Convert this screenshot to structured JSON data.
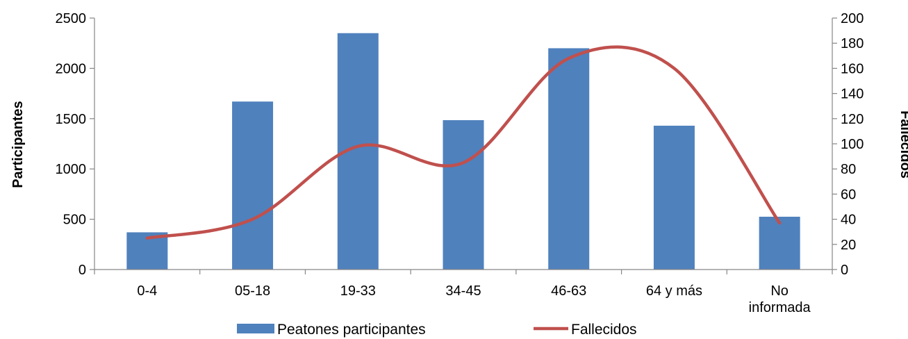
{
  "chart_data": {
    "type": "bar",
    "categories": [
      "0-4",
      "05-18",
      "19-33",
      "34-45",
      "46-63",
      "64 y más",
      "No informada"
    ],
    "category_lines": [
      [
        "0-4"
      ],
      [
        "05-18"
      ],
      [
        "19-33"
      ],
      [
        "34-45"
      ],
      [
        "46-63"
      ],
      [
        "64 y más"
      ],
      [
        "No",
        "informada"
      ]
    ],
    "series": [
      {
        "name": "Peatones participantes",
        "type": "bar",
        "axis": "left",
        "color": "#4F81BD",
        "values": [
          370,
          1670,
          2350,
          1485,
          2200,
          1430,
          525
        ]
      },
      {
        "name": "Fallecidos",
        "type": "line",
        "axis": "right",
        "color": "#C0504D",
        "smooth": true,
        "values": [
          25,
          40,
          98,
          85,
          168,
          160,
          37
        ]
      }
    ],
    "ylabel": "Participantes",
    "y2label": "Fallecidos",
    "ylim": [
      0,
      2500
    ],
    "y2lim": [
      0,
      200
    ],
    "yticks": [
      "0",
      "500",
      "1000",
      "1500",
      "2000",
      "2500"
    ],
    "y2ticks": [
      "0",
      "20",
      "40",
      "60",
      "80",
      "100",
      "120",
      "140",
      "160",
      "180",
      "200"
    ],
    "grid": false,
    "legend_position": "bottom"
  }
}
